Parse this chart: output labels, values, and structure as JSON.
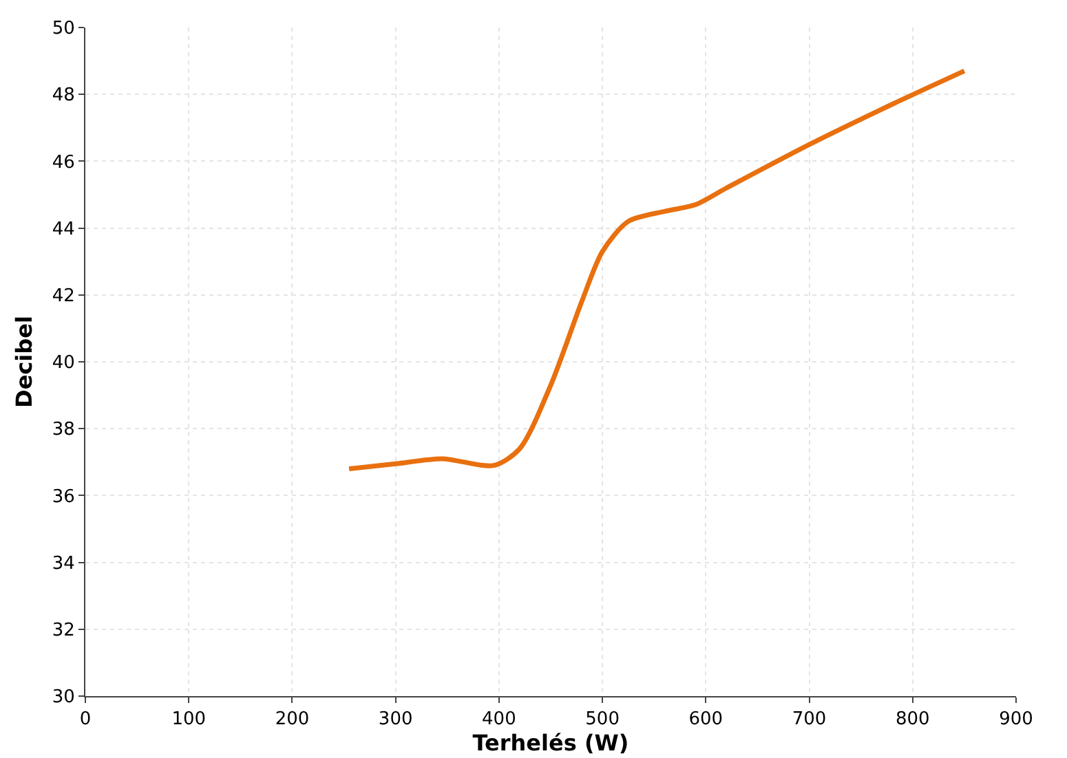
{
  "chart_data": {
    "type": "line",
    "xlabel": "Terhelés (W)",
    "ylabel": "Decibel",
    "x": [
      255,
      300,
      345,
      395,
      420,
      450,
      480,
      500,
      525,
      560,
      590,
      620,
      700,
      780,
      850
    ],
    "series": [
      {
        "color": "#e8700f",
        "values": [
          36.8,
          36.95,
          37.1,
          36.9,
          37.4,
          39.3,
          41.8,
          43.3,
          44.2,
          44.5,
          44.7,
          45.2,
          46.5,
          47.7,
          48.7
        ]
      }
    ],
    "xlim": [
      0,
      900
    ],
    "xticks": [
      0,
      100,
      200,
      300,
      400,
      500,
      600,
      700,
      800,
      900
    ],
    "ylim": [
      30,
      50
    ],
    "yticks": [
      30,
      32,
      34,
      36,
      38,
      40,
      42,
      44,
      46,
      48,
      50
    ],
    "grid": true,
    "legend": false,
    "marker": "none",
    "line_style": "solid"
  }
}
